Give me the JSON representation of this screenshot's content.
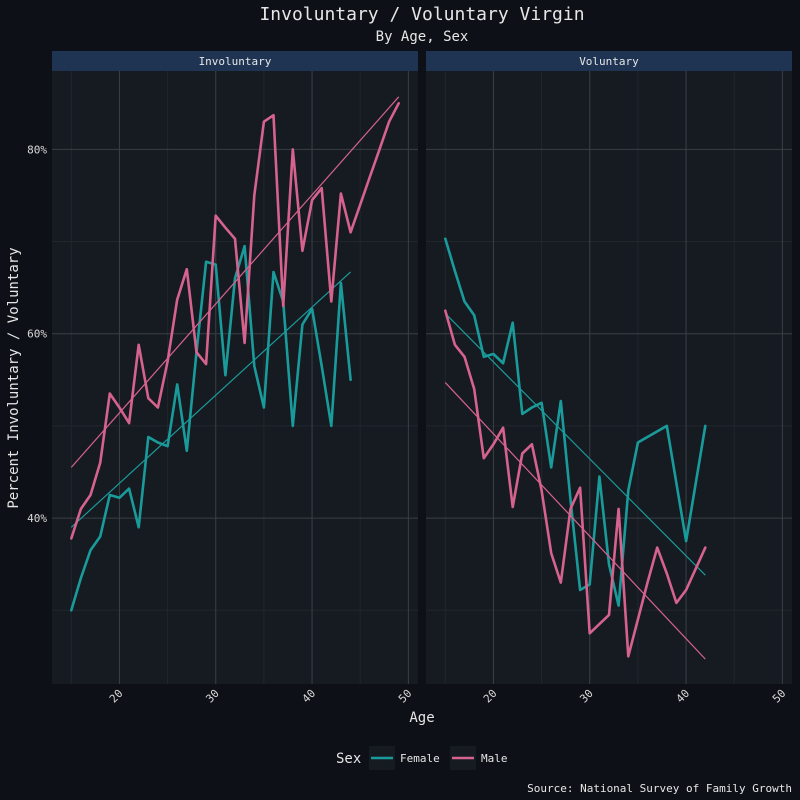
{
  "chart_data": {
    "type": "line",
    "title": "Involuntary / Voluntary Virgin",
    "subtitle": "By Age, Sex",
    "xlabel": "Age",
    "ylabel": "Percent Involuntary / Voluntary",
    "caption": "Source: National Survey of Family Growth",
    "xlim": [
      13,
      51
    ],
    "ylim": [
      0.22,
      0.885
    ],
    "x_ticks": [
      20,
      30,
      40,
      50
    ],
    "x_tick_labels": [
      "20",
      "30",
      "40",
      "50"
    ],
    "y_ticks": [
      0.4,
      0.6,
      0.8
    ],
    "y_tick_labels": [
      "40%",
      "60%",
      "80%"
    ],
    "grid": true,
    "legend": {
      "title": "Sex",
      "position": "bottom",
      "entries": [
        {
          "label": "Female",
          "color": "#1a9b9b"
        },
        {
          "label": "Male",
          "color": "#d6638e"
        }
      ]
    },
    "colors": {
      "background": "#0d1117",
      "panel": "#161b22",
      "strip": "#1f3353",
      "grid_major": "#3a3f46",
      "grid_minor": "#21262d",
      "female": "#1a9b9b",
      "male": "#d6638e"
    },
    "panels": [
      {
        "name": "Involuntary",
        "series": [
          {
            "name": "Female",
            "x": [
              15,
              16,
              17,
              18,
              19,
              20,
              21,
              22,
              23,
              24,
              25,
              26,
              27,
              28,
              29,
              30,
              31,
              32,
              33,
              34,
              35,
              36,
              37,
              38,
              39,
              40,
              41,
              42,
              43,
              44
            ],
            "y": [
              0.3,
              0.335,
              0.365,
              0.38,
              0.425,
              0.422,
              0.432,
              0.39,
              0.488,
              0.482,
              0.478,
              0.545,
              0.473,
              0.58,
              0.678,
              0.675,
              0.555,
              0.66,
              0.695,
              0.565,
              0.52,
              0.667,
              0.635,
              0.5,
              0.61,
              0.627,
              0.565,
              0.5,
              0.655,
              0.55
            ],
            "trend": [
              [
                15,
                0.39
              ],
              [
                44,
                0.667
              ]
            ]
          },
          {
            "name": "Male",
            "x": [
              15,
              16,
              17,
              18,
              19,
              20,
              21,
              22,
              23,
              24,
              25,
              26,
              27,
              28,
              29,
              30,
              31,
              32,
              33,
              34,
              35,
              36,
              37,
              38,
              39,
              40,
              41,
              42,
              43,
              44,
              45,
              46,
              47,
              48,
              49
            ],
            "y": [
              0.378,
              0.41,
              0.425,
              0.46,
              0.535,
              0.52,
              0.503,
              0.588,
              0.53,
              0.52,
              0.57,
              0.637,
              0.67,
              0.58,
              0.567,
              0.728,
              0.715,
              0.703,
              0.59,
              0.75,
              0.83,
              0.837,
              0.63,
              0.8,
              0.69,
              0.745,
              0.758,
              0.635,
              0.752,
              0.71,
              0.74,
              0.77,
              0.8,
              0.83,
              0.85
            ],
            "trend": [
              [
                15,
                0.455
              ],
              [
                49,
                0.857
              ]
            ]
          }
        ]
      },
      {
        "name": "Voluntary",
        "series": [
          {
            "name": "Female",
            "x": [
              15,
              16,
              17,
              18,
              19,
              20,
              21,
              22,
              23,
              24,
              25,
              26,
              27,
              28,
              29,
              30,
              31,
              32,
              33,
              34,
              35,
              38,
              40,
              42
            ],
            "y": [
              0.703,
              0.668,
              0.635,
              0.62,
              0.575,
              0.578,
              0.568,
              0.612,
              0.513,
              0.52,
              0.525,
              0.455,
              0.527,
              0.42,
              0.322,
              0.328,
              0.445,
              0.35,
              0.305,
              0.43,
              0.482,
              0.5,
              0.375,
              0.5
            ],
            "trend": [
              [
                15,
                0.622
              ],
              [
                42,
                0.338
              ]
            ]
          },
          {
            "name": "Male",
            "x": [
              15,
              16,
              17,
              18,
              19,
              20,
              21,
              22,
              23,
              24,
              25,
              26,
              27,
              28,
              29,
              30,
              31,
              32,
              33,
              34,
              35,
              36,
              37,
              38,
              39,
              40,
              41,
              42
            ],
            "y": [
              0.625,
              0.588,
              0.575,
              0.54,
              0.465,
              0.48,
              0.498,
              0.412,
              0.47,
              0.48,
              0.43,
              0.362,
              0.33,
              0.41,
              0.433,
              0.275,
              0.285,
              0.295,
              0.41,
              0.25,
              0.29,
              0.33,
              0.368,
              0.34,
              0.308,
              0.322,
              0.345,
              0.368
            ],
            "trend": [
              [
                15,
                0.547
              ],
              [
                42,
                0.247
              ]
            ]
          }
        ]
      }
    ]
  }
}
